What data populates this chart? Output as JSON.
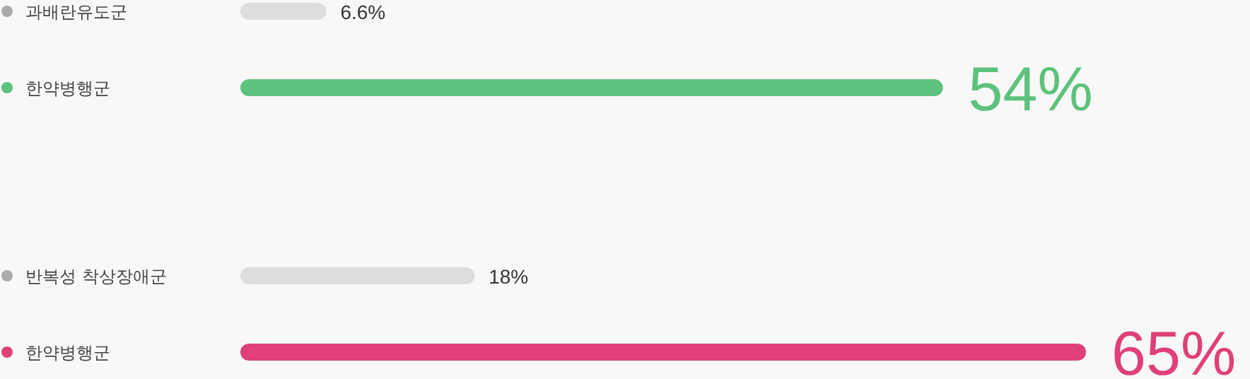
{
  "chart_data": [
    {
      "type": "bar",
      "orientation": "horizontal",
      "categories": [
        "과배란유도군",
        "한약병행군"
      ],
      "values": [
        6.6,
        54
      ],
      "colors": [
        "#dddddd",
        "#5cc27c"
      ],
      "value_labels": [
        "6.6%",
        "54%"
      ]
    },
    {
      "type": "bar",
      "orientation": "horizontal",
      "categories": [
        "반복성 착상장애군",
        "한약병행군"
      ],
      "values": [
        18,
        65
      ],
      "colors": [
        "#dddddd",
        "#e0407a"
      ],
      "value_labels": [
        "18%",
        "65%"
      ]
    }
  ]
}
